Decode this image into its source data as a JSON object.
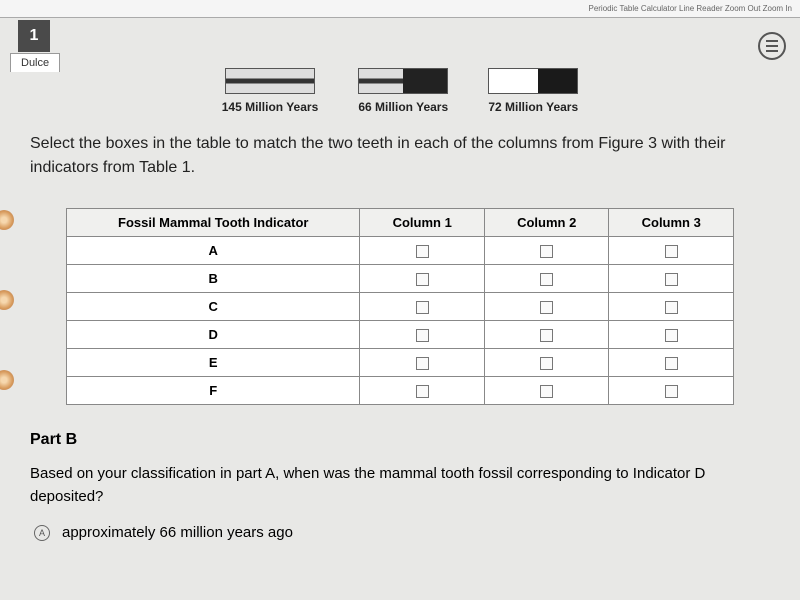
{
  "toolbar": {
    "links": "Periodic Table  Calculator  Line Reader  Zoom Out  Zoom In"
  },
  "question_number": "1",
  "tab_name": "Dulce",
  "timeline": [
    {
      "label": "145 Million Years"
    },
    {
      "label": "66 Million Years"
    },
    {
      "label": "72 Million Years"
    }
  ],
  "instruction": "Select the boxes in the table to match the two teeth in each of the columns from Figure 3 with their indicators from Table 1.",
  "table": {
    "headers": [
      "Fossil Mammal Tooth Indicator",
      "Column 1",
      "Column 2",
      "Column 3"
    ],
    "rows": [
      "A",
      "B",
      "C",
      "D",
      "E",
      "F"
    ]
  },
  "partB": {
    "title": "Part B",
    "question": "Based on your classification in part A, when was the mammal tooth fossil corresponding to Indicator D deposited?",
    "option_letter": "A",
    "option_text": "approximately 66 million years ago"
  },
  "colors": {
    "page_bg": "#e8e8e6",
    "header_box": "#4a4a4a",
    "border": "#888888"
  }
}
